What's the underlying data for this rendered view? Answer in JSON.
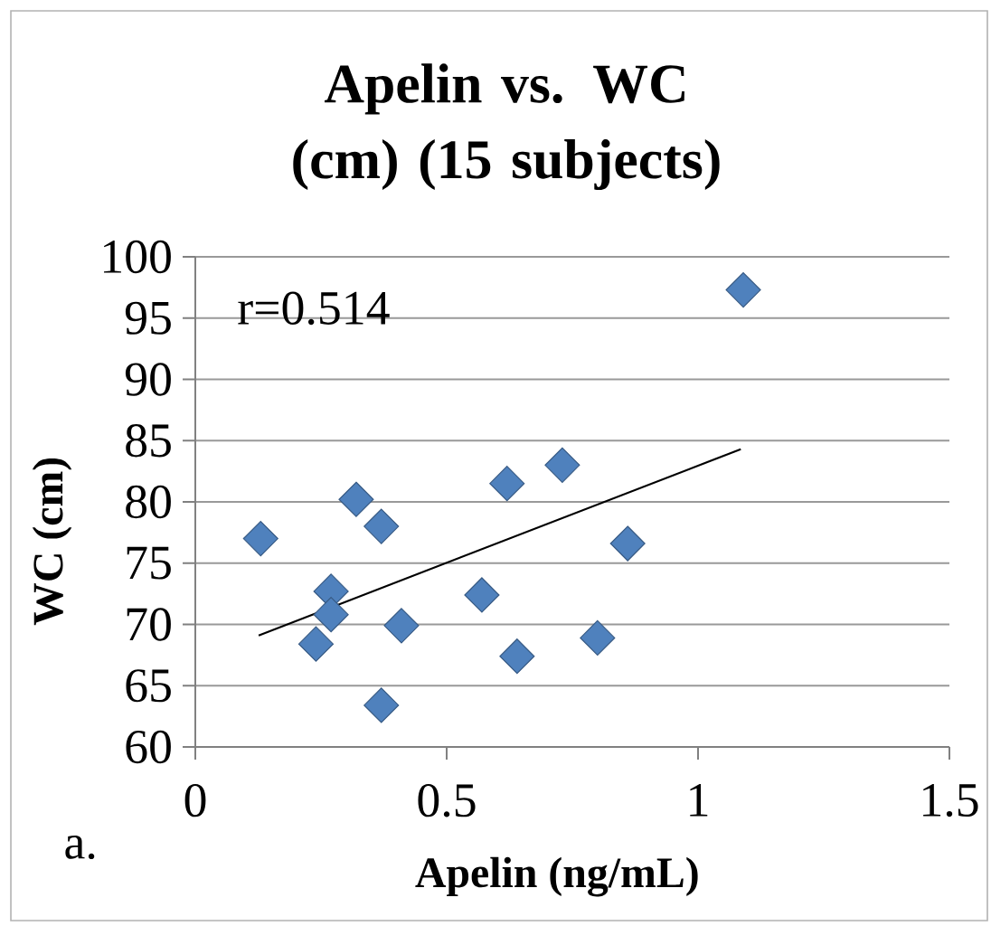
{
  "chart_data": {
    "type": "scatter",
    "title": "Apelin vs. WC (cm) (15 subjects)",
    "xlabel": "Apelin (ng/mL)",
    "ylabel": "WC (cm)",
    "annotations": [
      "r=0.514",
      "a."
    ],
    "xlim": [
      0,
      1.5
    ],
    "xticks": [
      0,
      0.5,
      1,
      1.5
    ],
    "ylim": [
      60,
      100
    ],
    "yticks": [
      60,
      65,
      70,
      75,
      80,
      85,
      90,
      95,
      100
    ],
    "grid": "y",
    "marker": "diamond",
    "series": [
      {
        "color": "#4f81bd",
        "x": [
          0.13,
          0.32,
          0.37,
          0.27,
          0.27,
          0.24,
          0.37,
          0.41,
          0.57,
          0.62,
          0.64,
          0.73,
          0.8,
          0.86,
          1.09
        ],
        "values": [
          77,
          80.2,
          78,
          72.7,
          70.8,
          68.4,
          63.4,
          69.9,
          72.4,
          81.5,
          67.4,
          83,
          68.9,
          76.6,
          97.3
        ]
      },
      {
        "type": "line",
        "color": "#000000",
        "marker": "none",
        "x": [
          0.126,
          1.085
        ],
        "values": [
          69.1,
          84.3
        ]
      }
    ]
  }
}
